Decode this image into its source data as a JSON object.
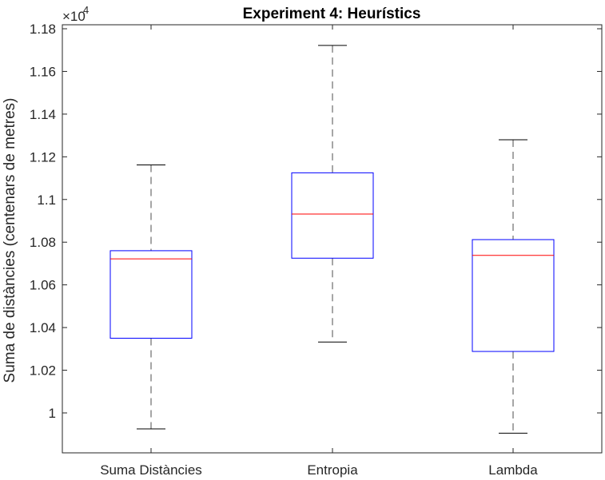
{
  "chart_data": {
    "type": "box",
    "title": "Experiment 4: Heurístics",
    "ylabel": "Suma de distàncies (centenars de metres)",
    "xlabel": "",
    "y_exponent_label": "×10",
    "y_exponent_power": "4",
    "ylim": [
      1.0,
      1.18
    ],
    "yticks": [
      1.0,
      1.02,
      1.04,
      1.06,
      1.08,
      1.1,
      1.12,
      1.14,
      1.16,
      1.18
    ],
    "ytick_labels": [
      "1",
      "1.02",
      "1.04",
      "1.06",
      "1.08",
      "1.1",
      "1.12",
      "1.14",
      "1.16",
      "1.18"
    ],
    "categories": [
      "Suma Distàncies",
      "Entropia",
      "Lambda"
    ],
    "boxes": [
      {
        "whisker_low": 0.9925,
        "q1": 1.035,
        "median": 1.0722,
        "q3": 1.076,
        "whisker_high": 1.1162
      },
      {
        "whisker_low": 1.0332,
        "q1": 1.0725,
        "median": 1.0932,
        "q3": 1.1125,
        "whisker_high": 1.1722
      },
      {
        "whisker_low": 0.9905,
        "q1": 1.0288,
        "median": 1.0738,
        "q3": 1.0812,
        "whisker_high": 1.128
      }
    ],
    "colors": {
      "box": "#0000ff",
      "median": "#ff0000",
      "whisker": "#000000"
    },
    "grid": false,
    "legend": "none"
  }
}
